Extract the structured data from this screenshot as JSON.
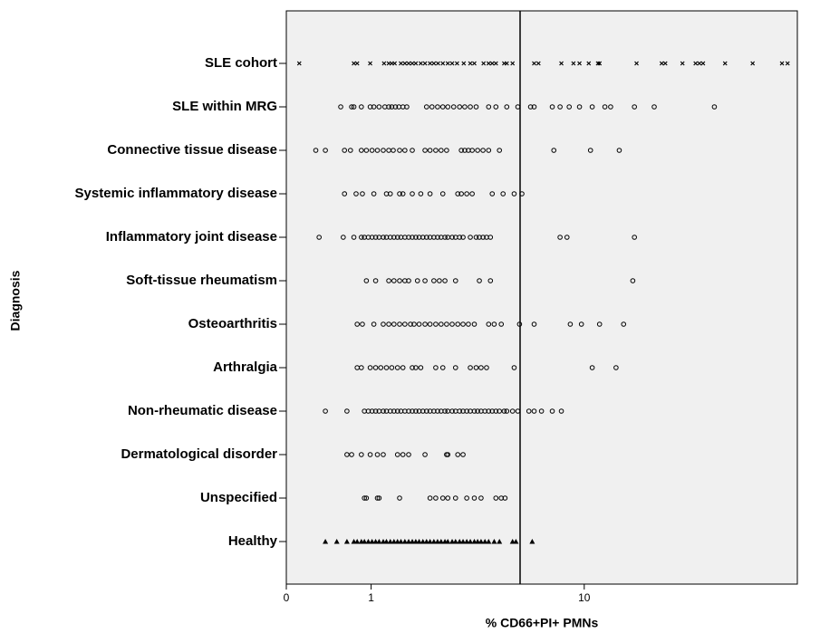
{
  "chart_data": {
    "type": "strip",
    "x_label": "% CD66+PI+ PMNs",
    "y_label": "Diagnosis",
    "xscale": "log",
    "xlim": [
      0.4,
      100
    ],
    "xticks": [
      {
        "value": 0.4,
        "label": "0"
      },
      1,
      10
    ],
    "reference_line": 5,
    "color": "#000000",
    "categories": [
      "SLE cohort",
      "SLE within MRG",
      "Connective tissue disease",
      "Systemic inflammatory disease",
      "Inflammatory joint disease",
      "Soft-tissue rheumatism",
      "Osteoarthritis",
      "Arthralgia",
      "Non-rheumatic disease",
      "Dermatological disorder",
      "Unspecified",
      "Healthy"
    ],
    "markers": [
      "x",
      "circle",
      "circle",
      "circle",
      "circle",
      "circle",
      "circle",
      "circle",
      "circle",
      "circle",
      "circle",
      "triangle"
    ],
    "values": [
      [
        0.46,
        0.83,
        0.86,
        0.99,
        1.15,
        1.21,
        1.25,
        1.29,
        1.38,
        1.44,
        1.5,
        1.56,
        1.62,
        1.71,
        1.79,
        1.89,
        1.97,
        2.06,
        2.17,
        2.29,
        2.4,
        2.53,
        2.72,
        2.92,
        3.05,
        3.37,
        3.56,
        3.7,
        3.85,
        4.21,
        4.33,
        4.61,
        5.82,
        6.1,
        7.81,
        8.9,
        9.5,
        10.5,
        11.6,
        11.8,
        17.6,
        23.1,
        24,
        28.9,
        33.3,
        34.7,
        36.1,
        45.8,
        61.7,
        84.7,
        90
      ],
      [
        0.72,
        0.81,
        0.83,
        0.9,
        0.99,
        1.03,
        1.09,
        1.16,
        1.21,
        1.25,
        1.3,
        1.35,
        1.41,
        1.47,
        1.82,
        1.93,
        2.05,
        2.17,
        2.29,
        2.44,
        2.6,
        2.75,
        2.92,
        3.11,
        3.56,
        3.85,
        4.33,
        4.88,
        5.6,
        5.82,
        7.08,
        7.7,
        8.5,
        9.5,
        10.9,
        12.5,
        13.3,
        17.2,
        21.3,
        40.8
      ],
      [
        0.55,
        0.61,
        0.75,
        0.8,
        0.9,
        0.95,
        1.01,
        1.07,
        1.14,
        1.21,
        1.27,
        1.36,
        1.44,
        1.56,
        1.79,
        1.89,
        2.01,
        2.13,
        2.26,
        2.65,
        2.75,
        2.86,
        2.98,
        3.16,
        3.35,
        3.56,
        4,
        7.2,
        10.7,
        14.6
      ],
      [
        0.75,
        0.85,
        0.91,
        1.03,
        1.18,
        1.23,
        1.36,
        1.41,
        1.56,
        1.71,
        1.89,
        2.17,
        2.55,
        2.65,
        2.81,
        2.98,
        3.7,
        4.16,
        4.69,
        5.1
      ],
      [
        0.57,
        0.74,
        0.83,
        0.9,
        0.93,
        0.97,
        1.01,
        1.05,
        1.09,
        1.14,
        1.18,
        1.23,
        1.28,
        1.33,
        1.38,
        1.44,
        1.5,
        1.56,
        1.62,
        1.68,
        1.75,
        1.82,
        1.89,
        1.97,
        2.05,
        2.13,
        2.22,
        2.29,
        2.4,
        2.49,
        2.6,
        2.7,
        2.92,
        3.11,
        3.22,
        3.35,
        3.48,
        3.63,
        7.7,
        8.3,
        17.2
      ],
      [
        0.95,
        1.05,
        1.21,
        1.28,
        1.36,
        1.44,
        1.5,
        1.65,
        1.79,
        1.97,
        2.09,
        2.22,
        2.49,
        3.22,
        3.63,
        16.9
      ],
      [
        0.86,
        0.91,
        1.03,
        1.14,
        1.21,
        1.28,
        1.36,
        1.44,
        1.53,
        1.59,
        1.68,
        1.79,
        1.89,
        2.01,
        2.13,
        2.26,
        2.4,
        2.55,
        2.7,
        2.86,
        3.05,
        3.56,
        3.78,
        4.08,
        4.97,
        5.82,
        8.6,
        9.7,
        11.8,
        15.3
      ],
      [
        0.86,
        0.9,
        0.99,
        1.05,
        1.11,
        1.18,
        1.25,
        1.33,
        1.41,
        1.56,
        1.62,
        1.71,
        2.01,
        2.17,
        2.49,
        2.92,
        3.11,
        3.28,
        3.48,
        4.69,
        10.9,
        14.1
      ],
      [
        0.61,
        0.77,
        0.93,
        0.97,
        1.01,
        1.05,
        1.09,
        1.14,
        1.18,
        1.23,
        1.28,
        1.33,
        1.38,
        1.44,
        1.5,
        1.56,
        1.62,
        1.68,
        1.75,
        1.82,
        1.89,
        1.97,
        2.05,
        2.13,
        2.22,
        2.29,
        2.4,
        2.49,
        2.6,
        2.7,
        2.81,
        2.92,
        3.05,
        3.16,
        3.28,
        3.42,
        3.56,
        3.7,
        3.85,
        4,
        4.21,
        4.33,
        4.61,
        4.88,
        5.5,
        5.82,
        6.3,
        7.08,
        7.81
      ],
      [
        0.77,
        0.81,
        0.9,
        0.99,
        1.07,
        1.14,
        1.33,
        1.41,
        1.5,
        1.79,
        2.26,
        2.29,
        2.55,
        2.7
      ],
      [
        0.93,
        0.95,
        1.07,
        1.09,
        1.36,
        1.89,
        2.01,
        2.17,
        2.29,
        2.49,
        2.81,
        3.05,
        3.28,
        3.85,
        4.08,
        4.25
      ],
      [
        0.61,
        0.69,
        0.77,
        0.83,
        0.86,
        0.9,
        0.93,
        0.97,
        1.01,
        1.05,
        1.09,
        1.14,
        1.18,
        1.23,
        1.28,
        1.33,
        1.38,
        1.44,
        1.5,
        1.56,
        1.62,
        1.68,
        1.75,
        1.82,
        1.89,
        1.97,
        2.05,
        2.13,
        2.22,
        2.29,
        2.4,
        2.49,
        2.6,
        2.7,
        2.81,
        2.92,
        3.05,
        3.16,
        3.28,
        3.42,
        3.56,
        3.78,
        4,
        4.61,
        4.78,
        5.7
      ]
    ]
  }
}
